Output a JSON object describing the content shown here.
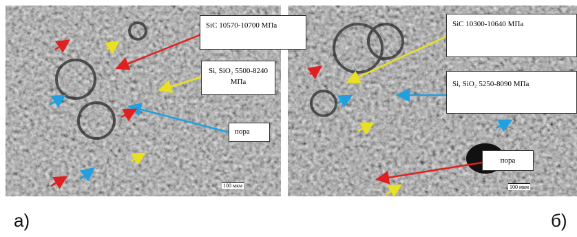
{
  "panels": [
    {
      "caption": "а)",
      "labels": {
        "sic": "SiC 10570-10700 МПа",
        "si": "Si, SiO₂ 5500-8240 МПа",
        "pore": "пора"
      },
      "scale": "100 мкм"
    },
    {
      "caption": "б)",
      "labels": {
        "sic": "SiC 10300-10640 МПа",
        "si": "Si, SiO₂ 5250-8090 МПа",
        "pore": "пора"
      },
      "scale": "100 мкм"
    }
  ]
}
